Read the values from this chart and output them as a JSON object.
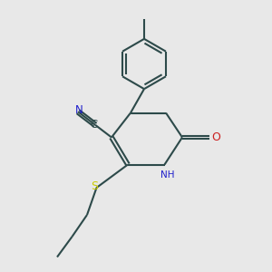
{
  "background_color": "#e8e8e8",
  "bond_color": "#2d4a4a",
  "bond_width": 1.5,
  "n_color": "#2020cc",
  "o_color": "#cc2020",
  "s_color": "#cccc00",
  "figsize": [
    3.0,
    3.0
  ],
  "dpi": 100,
  "xlim": [
    0,
    10
  ],
  "ylim": [
    0,
    10
  ]
}
